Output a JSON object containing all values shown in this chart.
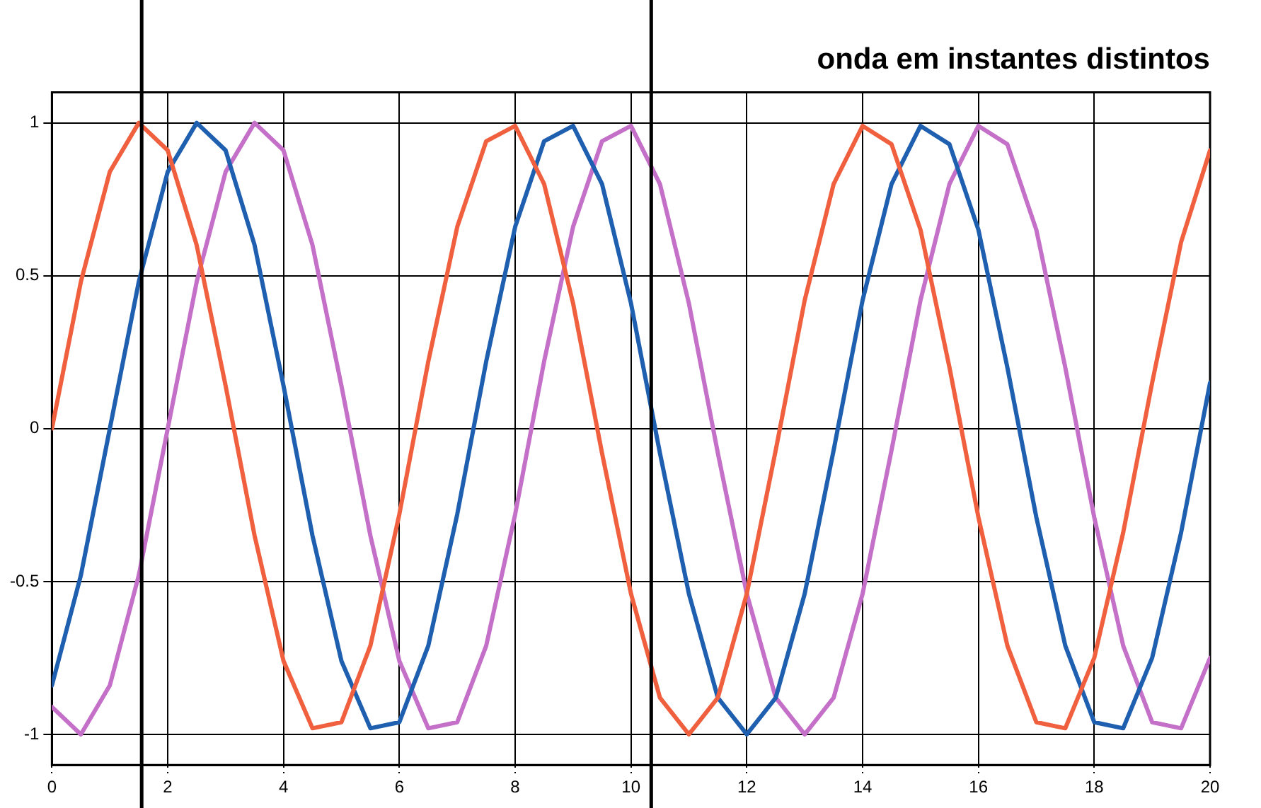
{
  "chart_data": {
    "type": "line",
    "title": "onda em instantes distintos",
    "x": [
      0,
      0.5,
      1,
      1.5,
      2,
      2.5,
      3,
      3.5,
      4,
      4.5,
      5,
      5.5,
      6,
      6.5,
      7,
      7.5,
      8,
      8.5,
      9,
      9.5,
      10,
      10.5,
      11,
      11.5,
      12,
      12.5,
      13,
      13.5,
      14,
      14.5,
      15,
      15.5,
      16,
      16.5,
      17,
      17.5,
      18,
      18.5,
      19,
      19.5,
      20
    ],
    "series": [
      {
        "color": "#f0603f",
        "values": [
          0,
          0.48,
          0.84,
          1.0,
          0.91,
          0.6,
          0.14,
          -0.35,
          -0.76,
          -0.98,
          -0.96,
          -0.71,
          -0.28,
          0.22,
          0.66,
          0.94,
          0.99,
          0.8,
          0.41,
          -0.08,
          -0.54,
          -0.88,
          -1.0,
          -0.88,
          -0.54,
          -0.07,
          0.42,
          0.8,
          0.99,
          0.93,
          0.65,
          0.2,
          -0.29,
          -0.71,
          -0.96,
          -0.98,
          -0.75,
          -0.34,
          0.15,
          0.61,
          0.91
        ]
      },
      {
        "color": "#1f5fb0",
        "values": [
          -0.84,
          -0.48,
          0,
          0.48,
          0.84,
          1.0,
          0.91,
          0.6,
          0.14,
          -0.35,
          -0.76,
          -0.98,
          -0.96,
          -0.71,
          -0.28,
          0.22,
          0.66,
          0.94,
          0.99,
          0.8,
          0.41,
          -0.08,
          -0.54,
          -0.88,
          -1.0,
          -0.88,
          -0.54,
          -0.07,
          0.42,
          0.8,
          0.99,
          0.93,
          0.65,
          0.2,
          -0.29,
          -0.71,
          -0.96,
          -0.98,
          -0.75,
          -0.34,
          0.15
        ]
      },
      {
        "color": "#c470c8",
        "values": [
          -0.91,
          -1.0,
          -0.84,
          -0.48,
          0,
          0.48,
          0.84,
          1.0,
          0.91,
          0.6,
          0.14,
          -0.35,
          -0.76,
          -0.98,
          -0.96,
          -0.71,
          -0.28,
          0.22,
          0.66,
          0.94,
          0.99,
          0.8,
          0.41,
          -0.08,
          -0.54,
          -0.88,
          -1.0,
          -0.88,
          -0.54,
          -0.07,
          0.42,
          0.8,
          0.99,
          0.93,
          0.65,
          0.2,
          -0.29,
          -0.71,
          -0.96,
          -0.98,
          -0.75
        ]
      }
    ],
    "xlim": [
      0,
      20
    ],
    "xticks": [
      0,
      2,
      4,
      6,
      8,
      10,
      12,
      14,
      16,
      18,
      20
    ],
    "ylim": [
      -1.1,
      1.1
    ],
    "yticks": [
      -1,
      -0.5,
      0,
      0.5,
      1
    ],
    "ref_lines": [
      {
        "axis": "x",
        "value": 1.55,
        "label": null,
        "color": "#000000"
      },
      {
        "axis": "x",
        "value": 10.35,
        "label": null,
        "color": "#000000"
      }
    ],
    "grid": true,
    "legend": false,
    "marker": "none",
    "line_style": "solid"
  }
}
